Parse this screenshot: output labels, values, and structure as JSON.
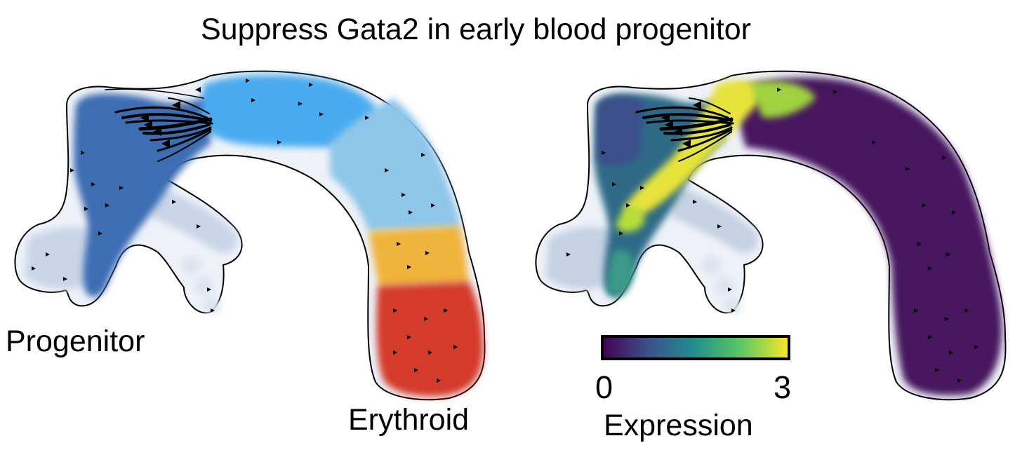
{
  "title": "Suppress Gata2 in early blood progenitor",
  "labels": {
    "progenitor": "Progenitor",
    "erythroid": "Erythroid"
  },
  "colorbar": {
    "min_label": "0",
    "max_label": "3",
    "title": "Expression",
    "min": 0,
    "max": 3,
    "colormap": "viridis",
    "colors": [
      "#440154",
      "#3b528b",
      "#21918c",
      "#5ec962",
      "#fde725"
    ]
  },
  "left_panel": {
    "coloring": "cell state",
    "colors": {
      "progenitor": "#3d6db3",
      "early": "#4aabef",
      "mid": "#8ec6ea",
      "transition": "#f0b43c",
      "erythroid": "#d43a2c",
      "faded": "#c7d3e6"
    }
  },
  "right_panel": {
    "coloring": "Gata2 expression",
    "colors": {
      "low": "#46195f",
      "mid": "#3a8a8a",
      "high": "#e8e436",
      "faded": "#c7d3e6"
    }
  }
}
